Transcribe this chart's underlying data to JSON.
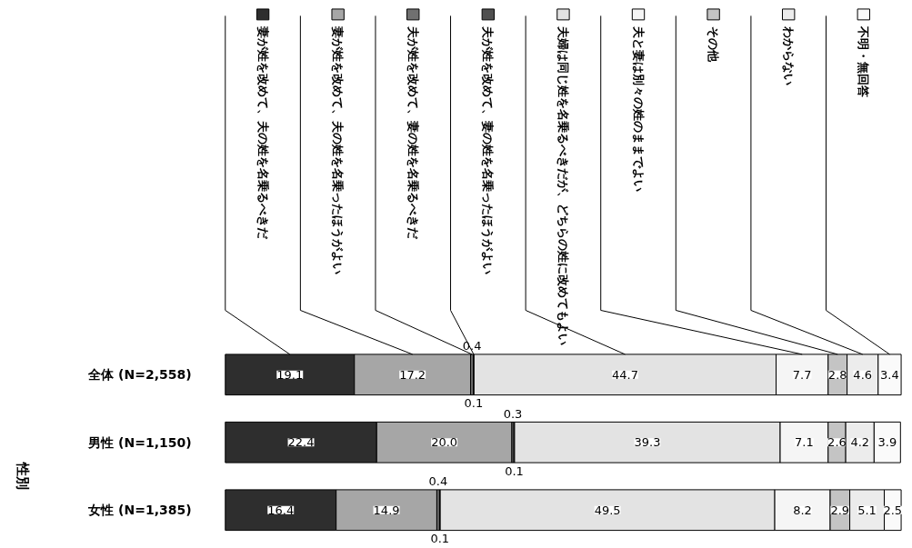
{
  "chart_data": {
    "type": "bar",
    "orientation": "horizontal",
    "stacked": true,
    "data_labels": true,
    "grid": false,
    "legend": "top",
    "categories": [
      "全体 (N=2,558)",
      "男性 (N=1,150)",
      "女性 (N=1,385)"
    ],
    "annotations": [
      "性別"
    ],
    "series": [
      {
        "name": "妻が姓を改めて、夫の姓を名乗るべきだ",
        "color": "#2e2e2e",
        "values": [
          19.1,
          22.4,
          16.4
        ]
      },
      {
        "name": "妻が姓を改めて、夫の姓を名乗ったほうがよい",
        "color": "#a6a6a6",
        "values": [
          17.2,
          20.0,
          14.9
        ],
        "value_labels": [
          "17.2",
          "20.0",
          "14.9"
        ]
      },
      {
        "name": "夫が姓を改めて、妻の姓を名乗るべきだ",
        "color": "#707070",
        "values": [
          0.4,
          0.3,
          0.4
        ]
      },
      {
        "name": "夫が姓を改めて、妻の姓を名乗ったほうがよい",
        "color": "#505050",
        "values": [
          0.1,
          0.1,
          0.1
        ]
      },
      {
        "name": "夫婦は同じ姓を名乗るべきだが、どちらの姓に改めてもよい",
        "color": "#e3e3e3",
        "values": [
          44.7,
          39.3,
          49.5
        ]
      },
      {
        "name": "夫と妻は別々の姓のままでよい",
        "color": "#f5f5f5",
        "values": [
          7.7,
          7.1,
          8.2
        ]
      },
      {
        "name": "その他",
        "color": "#c4c4c4",
        "values": [
          2.8,
          2.6,
          2.9
        ]
      },
      {
        "name": "わからない",
        "color": "#ececec",
        "values": [
          4.6,
          4.2,
          5.1
        ]
      },
      {
        "name": "不明・無回答",
        "color": "#fafafa",
        "values": [
          3.4,
          3.9,
          2.5
        ]
      }
    ]
  }
}
